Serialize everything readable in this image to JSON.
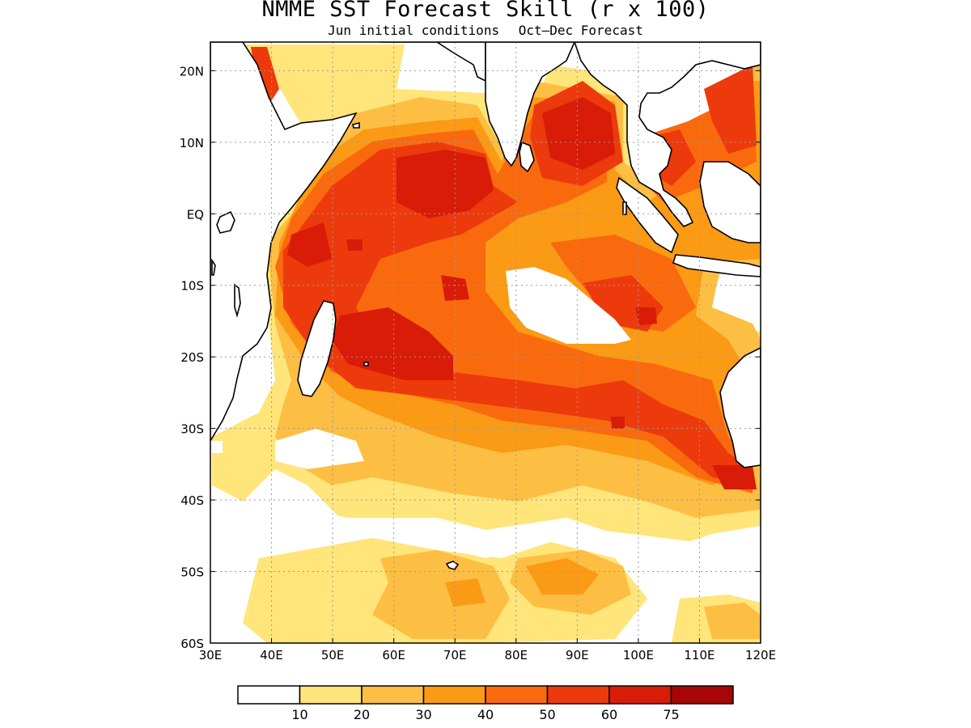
{
  "title": "NMME SST Forecast Skill (r x 100)",
  "subtitle": {
    "init": "Jun initial conditions",
    "forecast": "Oct–Dec Forecast"
  },
  "axes": {
    "lon_labels": [
      "30E",
      "40E",
      "50E",
      "60E",
      "70E",
      "80E",
      "90E",
      "100E",
      "110E",
      "120E"
    ],
    "lat_labels": [
      "20N",
      "10N",
      "EQ",
      "10S",
      "20S",
      "30S",
      "40S",
      "50S",
      "60S"
    ],
    "lon_range": [
      30,
      120
    ],
    "lat_range": [
      -60,
      24
    ]
  },
  "colorbar": {
    "colors": [
      "#ffffff",
      "#ffe57a",
      "#fdbe44",
      "#fb9a15",
      "#f96a0e",
      "#ed3a0c",
      "#d81c08",
      "#a80606"
    ],
    "labels": [
      "10",
      "20",
      "30",
      "40",
      "50",
      "60",
      "75"
    ]
  },
  "colors": {
    "land_outline": "#000000",
    "grid": "#9a9a9a"
  }
}
